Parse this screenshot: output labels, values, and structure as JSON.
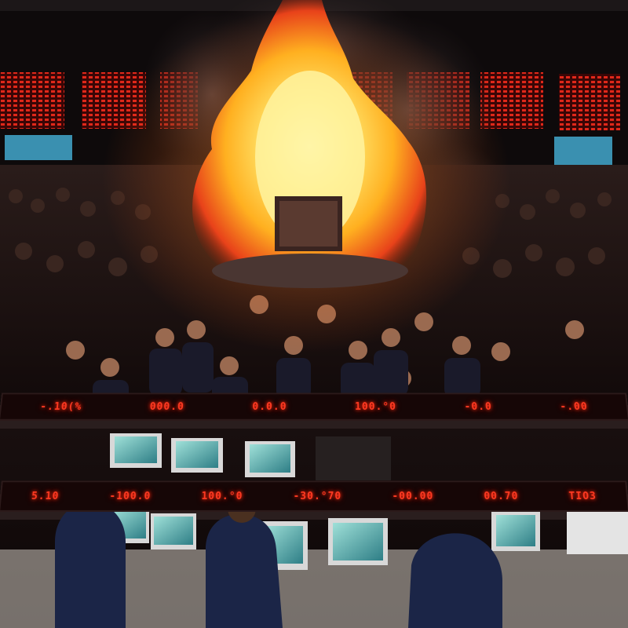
{
  "scene": {
    "subject": "trading-floor-fire",
    "colors": {
      "fire_core": "#fff3a0",
      "fire_mid": "#ffb020",
      "fire_outer": "#e8421a",
      "smoke": "#3b3132",
      "led_red": "#ff3a22",
      "monitor_teal": "#3aa6a8",
      "suit_navy": "#1b2547",
      "floor_dark": "#120b0b"
    }
  },
  "ticker_row_1": {
    "quotes": [
      "-.10(%",
      "000.0",
      "0.0.0",
      "100.°0",
      "-0.0",
      "-.00"
    ]
  },
  "ticker_row_2": {
    "quotes": [
      "5.10",
      "-100.0",
      "100.°0",
      "-30.°70",
      "-00.00",
      "00.70",
      "TIO3"
    ]
  }
}
